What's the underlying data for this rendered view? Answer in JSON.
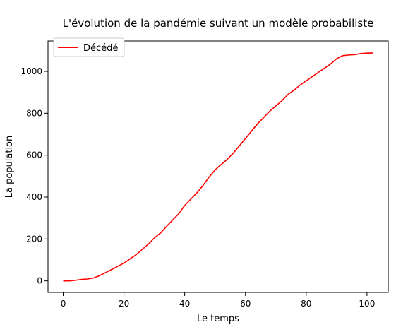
{
  "chart_data": {
    "type": "line",
    "title": "L'évolution de la pandémie suivant un modèle probabiliste",
    "xlabel": "Le temps",
    "ylabel": "La population",
    "xlim": [
      -5,
      107
    ],
    "ylim": [
      -55,
      1145
    ],
    "x_ticks": [
      0,
      20,
      40,
      60,
      80,
      100
    ],
    "y_ticks": [
      0,
      200,
      400,
      600,
      800,
      1000
    ],
    "grid": false,
    "legend_position": "upper left",
    "series": [
      {
        "name": "Décédé",
        "color": "#ff0000",
        "x": [
          0,
          2,
          4,
          6,
          8,
          10,
          12,
          14,
          16,
          18,
          20,
          22,
          24,
          26,
          28,
          30,
          32,
          34,
          36,
          38,
          40,
          42,
          44,
          46,
          48,
          50,
          52,
          54,
          56,
          58,
          60,
          62,
          64,
          66,
          68,
          70,
          72,
          74,
          76,
          78,
          80,
          82,
          84,
          86,
          88,
          90,
          92,
          94,
          96,
          98,
          100,
          102
        ],
        "values": [
          0,
          0,
          3,
          7,
          9,
          14,
          25,
          40,
          55,
          70,
          85,
          105,
          125,
          150,
          175,
          205,
          228,
          260,
          290,
          320,
          360,
          390,
          420,
          455,
          495,
          530,
          555,
          580,
          610,
          645,
          680,
          715,
          750,
          780,
          810,
          835,
          860,
          890,
          910,
          935,
          955,
          975,
          995,
          1015,
          1035,
          1060,
          1075,
          1078,
          1080,
          1085,
          1087,
          1088
        ]
      }
    ]
  }
}
